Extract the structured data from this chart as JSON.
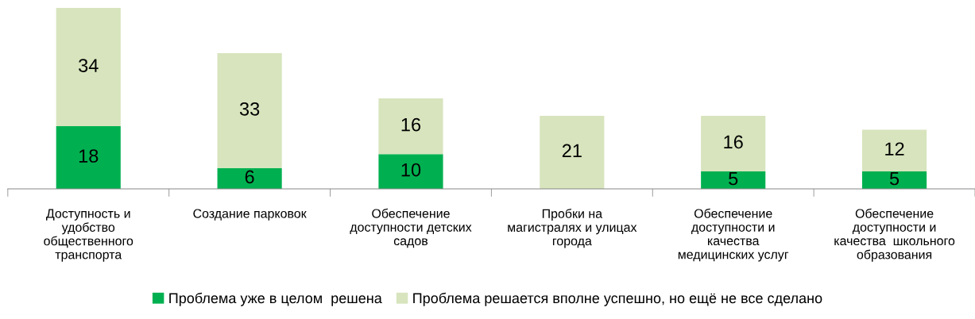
{
  "chart_data": {
    "type": "bar",
    "stacked": true,
    "data_labels": true,
    "grid": false,
    "legend": "bottom",
    "categories": [
      "Доступность и\nудобство\nобщественного\nтранспорта",
      "Создание парковок",
      "Обеспечение\nдоступности детских\nсадов",
      "Пробки на\nмагистралях и улицах\nгорода",
      "Обеспечение\nдоступности и\nкачества\nмедицинских услуг",
      "Обеспечение\nдоступности и\nкачества  школьного\nобразования"
    ],
    "series": [
      {
        "name": "Проблема уже в целом  решена",
        "color": "#00b050",
        "values": [
          18,
          6,
          10,
          null,
          5,
          5
        ]
      },
      {
        "name": "Проблема решается вполне успешно, но ещё не все сделано",
        "color": "#d7e4bd",
        "values": [
          34,
          33,
          16,
          21,
          16,
          12
        ]
      }
    ]
  }
}
